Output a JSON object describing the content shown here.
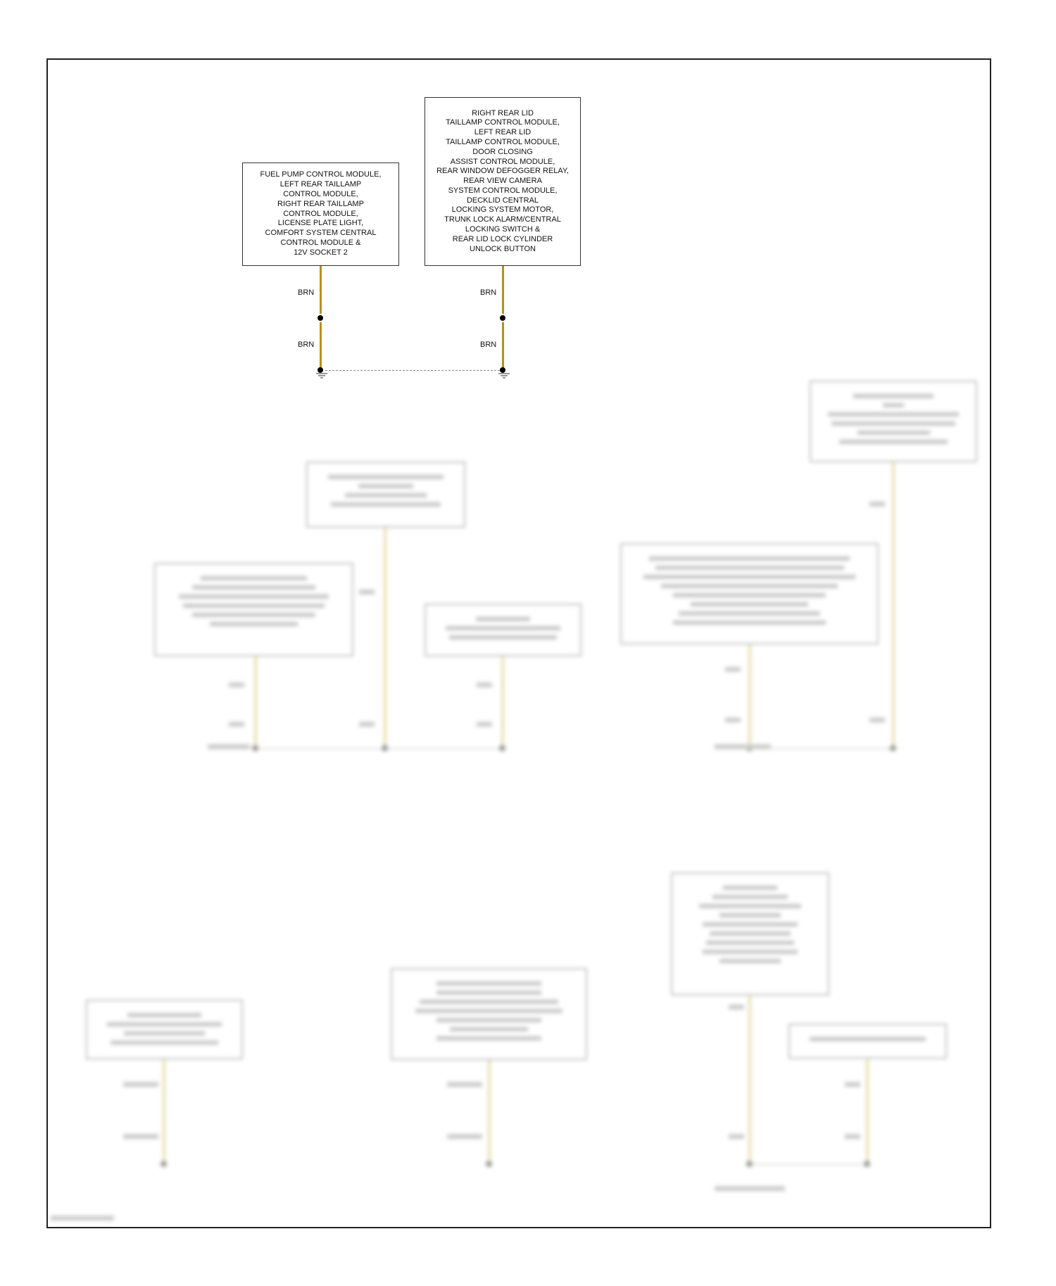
{
  "diagram": {
    "components": [
      {
        "id": "left",
        "label": "FUEL PUMP CONTROL MODULE,\nLEFT REAR TAILLAMP\nCONTROL MODULE,\nRIGHT REAR TAILLAMP\nCONTROL MODULE,\nLICENSE PLATE LIGHT,\nCOMFORT SYSTEM CENTRAL\nCONTROL MODULE &\n12V SOCKET 2"
      },
      {
        "id": "right",
        "label": "RIGHT REAR LID\nTAILLAMP CONTROL MODULE,\nLEFT REAR LID\nTAILLAMP CONTROL MODULE,\nDOOR CLOSING\nASSIST CONTROL MODULE,\nREAR WINDOW DEFOGGER RELAY,\nREAR VIEW CAMERA\nSYSTEM CONTROL MODULE,\nDECKLID CENTRAL\nLOCKING SYSTEM MOTOR,\nTRUNK LOCK ALARM/CENTRAL\nLOCKING SWITCH &\nREAR LID LOCK CYLINDER\nUNLOCK BUTTON"
      }
    ],
    "wire_labels": {
      "left_upper": "BRN",
      "left_lower": "BRN",
      "right_upper": "BRN",
      "right_lower": "BRN"
    },
    "wire_color": "#b8901a",
    "blurred_wire_color": "#e8e0b0"
  }
}
